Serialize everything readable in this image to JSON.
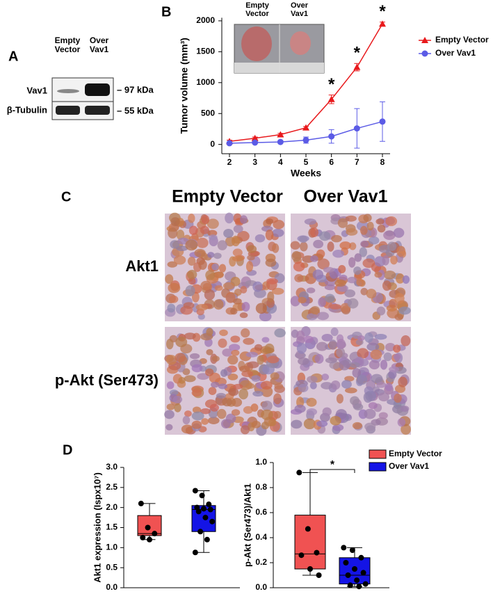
{
  "panels": {
    "a": {
      "label": "A",
      "columns": [
        "Empty Vector",
        "Over Vav1"
      ],
      "rows": [
        "Vav1",
        "β-Tubulin"
      ],
      "markers": [
        "– 97 kDa",
        "– 55 kDa"
      ]
    },
    "b": {
      "label": "B",
      "inset_columns": [
        "Empty Vector",
        "Over Vav1"
      ]
    },
    "c": {
      "label": "C",
      "columns": [
        "Empty Vector",
        "Over Vav1"
      ],
      "rows": [
        "Akt1",
        "p-Akt (Ser473)"
      ]
    },
    "d": {
      "label": "D"
    }
  },
  "chart_data": [
    {
      "type": "line",
      "x_label": "Weeks",
      "y_label": "Tumor volume (mm³)",
      "x": [
        2,
        3,
        4,
        5,
        6,
        7,
        8
      ],
      "xlim": [
        1.7,
        8.3
      ],
      "xticks": [
        2,
        3,
        4,
        5,
        6,
        7,
        8
      ],
      "ylim": [
        -150,
        2050
      ],
      "yticks": [
        0,
        500,
        1000,
        1500,
        2000
      ],
      "legend": "upper-right",
      "series": [
        {
          "name": "Empty Vector",
          "color": "#e8191c",
          "marker": "triangle",
          "values": [
            50,
            100,
            160,
            270,
            730,
            1250,
            1950
          ],
          "errors": [
            20,
            20,
            20,
            20,
            70,
            60,
            30
          ]
        },
        {
          "name": "Over Vav1",
          "color": "#5b5be6",
          "marker": "circle",
          "values": [
            20,
            30,
            40,
            70,
            130,
            260,
            370
          ],
          "errors": [
            10,
            10,
            15,
            50,
            110,
            320,
            320
          ]
        }
      ],
      "annotations": [
        {
          "x": 6,
          "text": "*"
        },
        {
          "x": 7,
          "text": "*"
        },
        {
          "x": 8,
          "text": "*"
        }
      ]
    },
    {
      "type": "box",
      "y_label": "Akt1 expression (Ispx10⁷)",
      "ylim": [
        0,
        3
      ],
      "yticks": [
        {
          "value": 0,
          "label": "0.0"
        },
        {
          "value": 0.5,
          "label": "0.5"
        },
        {
          "value": 1,
          "label": "1.0"
        },
        {
          "value": 1.5,
          "label": "1.5"
        },
        {
          "value": 2,
          "label": "2.0"
        },
        {
          "value": 2.5,
          "label": "2.5"
        },
        {
          "value": 3,
          "label": "3.0"
        }
      ],
      "series": [
        {
          "color": "#f05252",
          "min": 1.2,
          "q1": 1.3,
          "median": 1.35,
          "q3": 1.8,
          "max": 2.1,
          "points": [
            2.1,
            1.5,
            1.35,
            1.25,
            1.2
          ]
        },
        {
          "color": "#1414e6",
          "min": 0.88,
          "q1": 1.4,
          "median": 1.95,
          "q3": 2.05,
          "max": 2.42,
          "points": [
            2.42,
            2.3,
            2.08,
            2.0,
            1.97,
            1.95,
            1.9,
            1.75,
            1.65,
            1.4,
            1.2,
            0.88
          ]
        }
      ]
    },
    {
      "type": "box",
      "y_label": "p-Akt (Ser473)/Akt1",
      "ylim": [
        0,
        1
      ],
      "legend": "upper-right",
      "significance": "*",
      "yticks": [
        {
          "value": 0,
          "label": "0.0"
        },
        {
          "value": 0.2,
          "label": "0.2"
        },
        {
          "value": 0.4,
          "label": "0.4"
        },
        {
          "value": 0.6,
          "label": "0.6"
        },
        {
          "value": 0.8,
          "label": "0.8"
        },
        {
          "value": 1,
          "label": "1.0"
        }
      ],
      "series": [
        {
          "name": "Empty Vector",
          "color": "#f05252",
          "min": 0.1,
          "q1": 0.15,
          "median": 0.27,
          "q3": 0.58,
          "max": 0.92,
          "points": [
            0.92,
            0.47,
            0.28,
            0.26,
            0.15,
            0.1
          ]
        },
        {
          "name": "Over Vav1",
          "color": "#1414e6",
          "min": 0.01,
          "q1": 0.03,
          "median": 0.1,
          "q3": 0.24,
          "max": 0.32,
          "points": [
            0.32,
            0.3,
            0.24,
            0.2,
            0.15,
            0.12,
            0.1,
            0.06,
            0.03,
            0.02,
            0.01
          ]
        }
      ]
    }
  ]
}
